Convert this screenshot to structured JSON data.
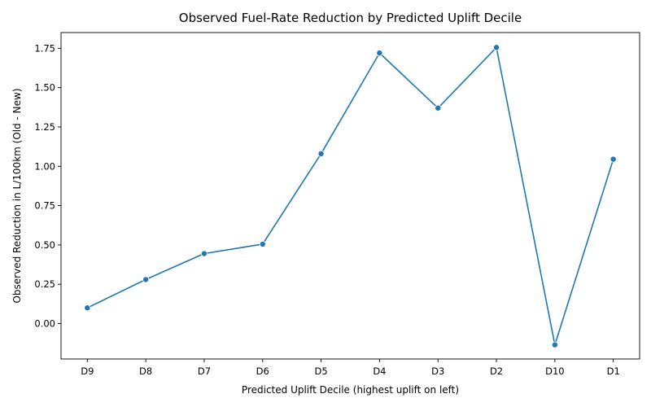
{
  "chart_data": {
    "type": "line",
    "title": "Observed Fuel-Rate Reduction by Predicted Uplift Decile",
    "xlabel": "Predicted Uplift Decile (highest uplift on left)",
    "ylabel": "Observed Reduction in L/100km (Old - New)",
    "categories": [
      "D9",
      "D8",
      "D7",
      "D6",
      "D5",
      "D4",
      "D3",
      "D2",
      "D10",
      "D1"
    ],
    "values": [
      0.1,
      0.28,
      0.445,
      0.505,
      1.08,
      1.72,
      1.37,
      1.755,
      -0.135,
      1.045
    ],
    "ylim": [
      -0.225,
      1.85
    ],
    "yticks": [
      "0.00",
      "0.25",
      "0.50",
      "0.75",
      "1.00",
      "1.25",
      "1.50",
      "1.75"
    ],
    "grid": false,
    "markers": true,
    "color": "#1f77b4"
  }
}
